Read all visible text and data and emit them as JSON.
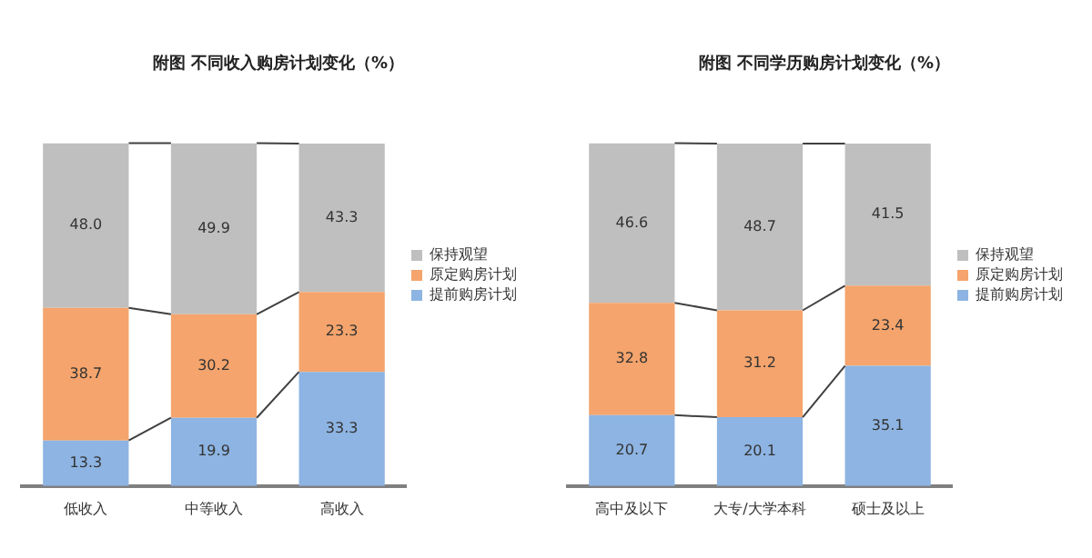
{
  "chart_data": [
    {
      "type": "bar",
      "title": "附图 不同收入购房计划变化（%）",
      "categories": [
        "低收入",
        "中等收入",
        "高收入"
      ],
      "stacked": true,
      "legend": "right",
      "grid": false,
      "ylim": [
        0,
        100
      ],
      "tick_labels": "x",
      "series": [
        {
          "name": "提前购房计划",
          "color": "#8db4e2",
          "values": [
            13.3,
            19.9,
            33.3
          ],
          "value_labels": [
            "13.3",
            "19.9",
            "33.3"
          ]
        },
        {
          "name": "原定购房计划",
          "color": "#f4a46c",
          "values": [
            38.7,
            30.2,
            23.3
          ],
          "value_labels": [
            "38.7",
            "30.2",
            "23.3"
          ]
        },
        {
          "name": "保持观望",
          "color": "#bfbfbf",
          "values": [
            48.0,
            49.9,
            43.3
          ],
          "value_labels": [
            "48.0",
            "49.9",
            "43.3"
          ]
        }
      ]
    },
    {
      "type": "bar",
      "title": "附图 不同学历购房计划变化（%）",
      "categories": [
        "高中及以下",
        "大专/大学本科",
        "硕士及以上"
      ],
      "stacked": true,
      "legend": "right",
      "grid": false,
      "ylim": [
        0,
        100.1
      ],
      "tick_labels": "x",
      "series": [
        {
          "name": "提前购房计划",
          "color": "#8db4e2",
          "values": [
            20.7,
            20.1,
            35.1
          ],
          "value_labels": [
            "20.7",
            "20.1",
            "35.1"
          ]
        },
        {
          "name": "原定购房计划",
          "color": "#f4a46c",
          "values": [
            32.8,
            31.2,
            23.4
          ],
          "value_labels": [
            "32.8",
            "31.2",
            "23.4"
          ]
        },
        {
          "name": "保持观望",
          "color": "#bfbfbf",
          "values": [
            46.6,
            48.7,
            41.5
          ],
          "value_labels": [
            "46.6",
            "48.7",
            "41.5"
          ]
        }
      ]
    }
  ]
}
